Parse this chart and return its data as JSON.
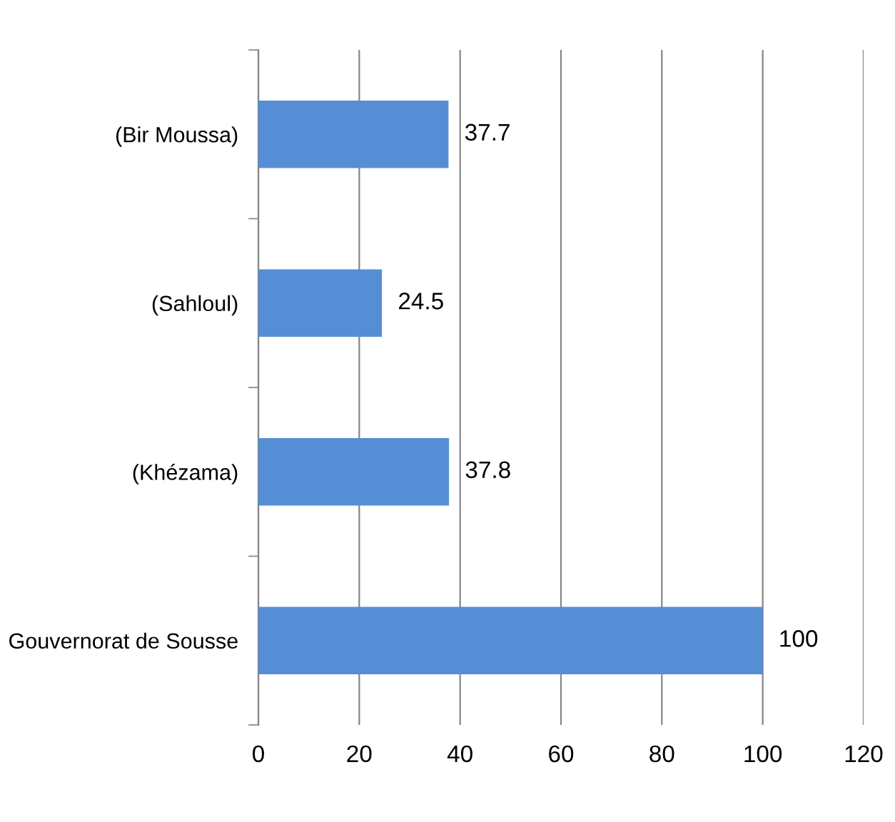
{
  "chart_data": {
    "type": "bar",
    "orientation": "horizontal",
    "categories": [
      "(Bir Moussa)",
      "(Sahloul)",
      "(Khézama)",
      "Gouvernorat de Sousse"
    ],
    "values": [
      37.7,
      24.5,
      37.8,
      100
    ],
    "color": "#558ed5",
    "xlim": [
      0,
      120
    ],
    "xticks": [
      0,
      20,
      40,
      60,
      80,
      100,
      120
    ],
    "grid": "x",
    "data_labels": true
  }
}
